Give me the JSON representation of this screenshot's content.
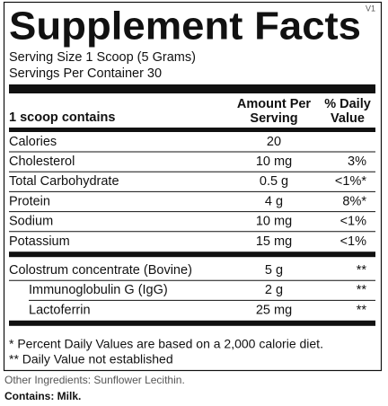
{
  "header": {
    "title": "Supplement Facts",
    "version": "V1"
  },
  "serving": {
    "size": "Serving Size 1 Scoop (5 Grams)",
    "per_container": "Servings Per Container 30"
  },
  "table": {
    "heading": "1 scoop contains",
    "amount_header": [
      "Amount Per",
      "Serving"
    ],
    "dv_header": [
      "% Daily",
      "Value"
    ],
    "sections": [
      [
        {
          "name": "Calories",
          "amount": "20"
        },
        {
          "name": "Cholesterol",
          "amount": "10 mg",
          "dv": "3%"
        },
        {
          "name": "Total Carbohydrate",
          "amount": "0.5 g",
          "dv": "<1%*"
        },
        {
          "name": "Protein",
          "amount": "4 g",
          "dv": "8%*"
        },
        {
          "name": "Sodium",
          "amount": "10 mg",
          "dv": "<1%"
        },
        {
          "name": "Potassium",
          "amount": "15 mg",
          "dv": "<1%"
        }
      ],
      [
        {
          "name": "Colostrum concentrate (Bovine)",
          "amount": "5 g",
          "dv": "**",
          "components": [
            {
              "name": "Immunoglobulin G (IgG)",
              "amount": "2 g",
              "dv": "**"
            },
            {
              "name": "Lactoferrin",
              "amount": "25 mg",
              "dv": "**"
            }
          ]
        }
      ]
    ]
  },
  "footnotes": [
    "* Percent Daily Values are based on a 2,000 calorie diet.",
    "** Daily Value not established"
  ],
  "other_ingredients": "Other Ingredients: Sunflower Lecithin.",
  "contains": "Contains: Milk."
}
